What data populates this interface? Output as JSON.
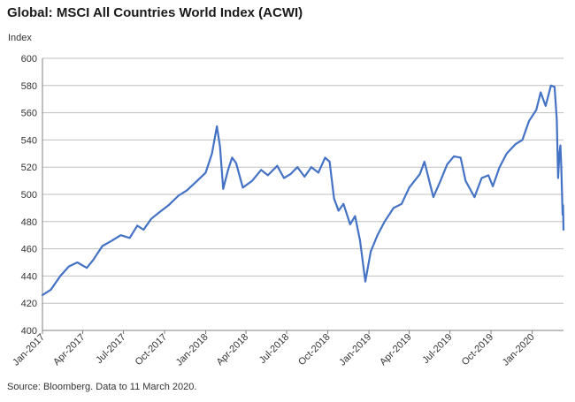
{
  "chart_data": {
    "type": "line",
    "title": "Global: MSCI All Countries World Index (ACWI)",
    "ylabel": "Index",
    "xlabel": "",
    "ylim": [
      400,
      600
    ],
    "yticks": [
      400,
      420,
      440,
      460,
      480,
      500,
      520,
      540,
      560,
      580,
      600
    ],
    "grid": "horizontal",
    "xlim": [
      "2017-01-01",
      "2020-03-11"
    ],
    "x_tick_labels": [
      {
        "date": "2017-01-01",
        "label": "Jan-2017"
      },
      {
        "date": "2017-04-01",
        "label": "Apr-2017"
      },
      {
        "date": "2017-07-01",
        "label": "Jul-2017"
      },
      {
        "date": "2017-10-01",
        "label": "Oct-2017"
      },
      {
        "date": "2018-01-01",
        "label": "Jan-2018"
      },
      {
        "date": "2018-04-01",
        "label": "Apr-2018"
      },
      {
        "date": "2018-07-01",
        "label": "Jul-2018"
      },
      {
        "date": "2018-10-01",
        "label": "Oct-2018"
      },
      {
        "date": "2019-01-01",
        "label": "Jan-2019"
      },
      {
        "date": "2019-04-01",
        "label": "Apr-2019"
      },
      {
        "date": "2019-07-01",
        "label": "Jul-2019"
      },
      {
        "date": "2019-10-01",
        "label": "Oct-2019"
      },
      {
        "date": "2020-01-01",
        "label": "Jan-2020"
      }
    ],
    "line_color": "#4472c4",
    "series": [
      {
        "points": [
          [
            "2017-01-01",
            426
          ],
          [
            "2017-01-20",
            430
          ],
          [
            "2017-02-10",
            440
          ],
          [
            "2017-03-01",
            447
          ],
          [
            "2017-03-20",
            450
          ],
          [
            "2017-04-10",
            446
          ],
          [
            "2017-04-25",
            452
          ],
          [
            "2017-05-15",
            462
          ],
          [
            "2017-06-05",
            466
          ],
          [
            "2017-06-25",
            470
          ],
          [
            "2017-07-15",
            468
          ],
          [
            "2017-08-01",
            477
          ],
          [
            "2017-08-15",
            474
          ],
          [
            "2017-09-01",
            482
          ],
          [
            "2017-09-20",
            487
          ],
          [
            "2017-10-10",
            492
          ],
          [
            "2017-11-01",
            499
          ],
          [
            "2017-11-20",
            503
          ],
          [
            "2017-12-10",
            509
          ],
          [
            "2018-01-01",
            516
          ],
          [
            "2018-01-15",
            530
          ],
          [
            "2018-01-26",
            550
          ],
          [
            "2018-02-02",
            535
          ],
          [
            "2018-02-09",
            504
          ],
          [
            "2018-02-20",
            518
          ],
          [
            "2018-03-01",
            527
          ],
          [
            "2018-03-10",
            523
          ],
          [
            "2018-03-25",
            505
          ],
          [
            "2018-04-15",
            510
          ],
          [
            "2018-05-05",
            518
          ],
          [
            "2018-05-20",
            514
          ],
          [
            "2018-06-10",
            521
          ],
          [
            "2018-06-25",
            512
          ],
          [
            "2018-07-10",
            515
          ],
          [
            "2018-07-25",
            520
          ],
          [
            "2018-08-10",
            513
          ],
          [
            "2018-08-25",
            520
          ],
          [
            "2018-09-10",
            516
          ],
          [
            "2018-09-25",
            527
          ],
          [
            "2018-10-05",
            524
          ],
          [
            "2018-10-15",
            497
          ],
          [
            "2018-10-25",
            488
          ],
          [
            "2018-11-05",
            493
          ],
          [
            "2018-11-20",
            478
          ],
          [
            "2018-12-01",
            484
          ],
          [
            "2018-12-12",
            466
          ],
          [
            "2018-12-24",
            436
          ],
          [
            "2019-01-05",
            458
          ],
          [
            "2019-01-20",
            470
          ],
          [
            "2019-02-05",
            480
          ],
          [
            "2019-02-25",
            490
          ],
          [
            "2019-03-15",
            493
          ],
          [
            "2019-04-01",
            505
          ],
          [
            "2019-04-25",
            515
          ],
          [
            "2019-05-05",
            524
          ],
          [
            "2019-05-25",
            498
          ],
          [
            "2019-06-10",
            510
          ],
          [
            "2019-06-25",
            522
          ],
          [
            "2019-07-10",
            528
          ],
          [
            "2019-07-25",
            527
          ],
          [
            "2019-08-05",
            510
          ],
          [
            "2019-08-25",
            498
          ],
          [
            "2019-09-10",
            512
          ],
          [
            "2019-09-25",
            514
          ],
          [
            "2019-10-05",
            506
          ],
          [
            "2019-10-20",
            520
          ],
          [
            "2019-11-05",
            530
          ],
          [
            "2019-11-25",
            537
          ],
          [
            "2019-12-10",
            540
          ],
          [
            "2019-12-25",
            554
          ],
          [
            "2020-01-10",
            562
          ],
          [
            "2020-01-20",
            575
          ],
          [
            "2020-01-31",
            565
          ],
          [
            "2020-02-12",
            580
          ],
          [
            "2020-02-20",
            579
          ],
          [
            "2020-02-25",
            555
          ],
          [
            "2020-02-28",
            512
          ],
          [
            "2020-03-02",
            530
          ],
          [
            "2020-03-04",
            536
          ],
          [
            "2020-03-06",
            520
          ],
          [
            "2020-03-09",
            485
          ],
          [
            "2020-03-10",
            492
          ],
          [
            "2020-03-11",
            474
          ]
        ]
      }
    ],
    "source": "Source: Bloomberg.   Data to 11 March 2020."
  }
}
